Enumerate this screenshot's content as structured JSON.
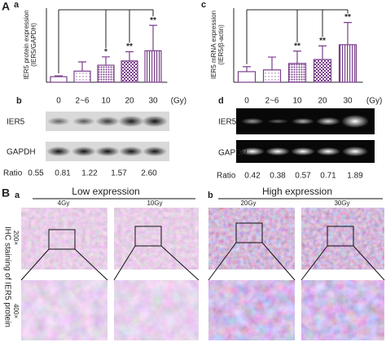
{
  "figure_label": "A",
  "chart_data": [
    {
      "type": "bar",
      "panel_label": "a",
      "ylabel": [
        "IER5 protein expression",
        "(IER5/GAPDH)"
      ],
      "xlabel": "(Gy)",
      "categories": [
        "0",
        "2~6",
        "10",
        "20",
        "30"
      ],
      "values": [
        0.3,
        0.6,
        0.92,
        1.15,
        1.7
      ],
      "errors": [
        0.05,
        0.5,
        0.45,
        0.5,
        1.37
      ],
      "significance": [
        null,
        null,
        "*",
        "**",
        "**"
      ],
      "color": "#7b3f8c",
      "ylim": [
        0,
        4
      ]
    },
    {
      "type": "bar",
      "panel_label": "c",
      "ylabel": [
        "IER5 mRNA expression",
        "(IER5/β-actin)"
      ],
      "xlabel": "(Gy)",
      "categories": [
        "0",
        "2~6",
        "10",
        "20",
        "30"
      ],
      "values": [
        0.43,
        0.5,
        0.76,
        0.92,
        1.52
      ],
      "errors": [
        0.2,
        0.52,
        0.5,
        0.55,
        0.9
      ],
      "significance": [
        null,
        null,
        "**",
        "**",
        "**"
      ],
      "color": "#7b3f8c",
      "ylim": [
        0,
        3
      ]
    }
  ],
  "blots": [
    {
      "panel_label": "b",
      "bands": [
        "IER5",
        "GAPDH"
      ],
      "ratio_label": "Ratio",
      "ratios": [
        "0.55",
        "0.81",
        "1.22",
        "1.57",
        "2.60"
      ]
    },
    {
      "panel_label": "d",
      "bands": [
        "IER5",
        "GAPDH"
      ],
      "ratio_label": "Ratio",
      "ratios": [
        "0.42",
        "0.38",
        "0.57",
        "0.71",
        "1.89"
      ]
    }
  ],
  "ihc": {
    "figure_label": "B",
    "y_label": "IHC staining of IER5 protein",
    "magnifications": [
      "200×",
      "400×"
    ],
    "groups": [
      {
        "panel_label": "a",
        "title": "Low expression",
        "doses": [
          "4Gy",
          "10Gy"
        ]
      },
      {
        "panel_label": "b",
        "title": "High expression",
        "doses": [
          "20Gy",
          "30Gy"
        ]
      }
    ]
  }
}
